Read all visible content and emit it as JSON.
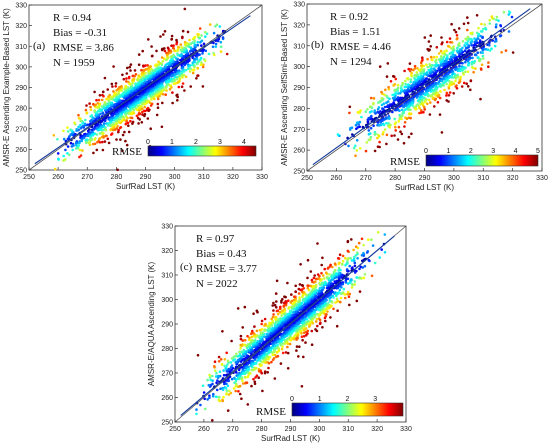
{
  "chart_data": [
    {
      "type": "scatter",
      "panel_label": "(a)",
      "xlabel": "SurfRad LST (K)",
      "ylabel": "AMSR-E Ascending Example-Based LST (K)",
      "xlim": [
        250,
        330
      ],
      "ylim": [
        250,
        330
      ],
      "xticks": [
        250,
        260,
        270,
        280,
        290,
        300,
        310,
        320,
        330
      ],
      "yticks": [
        250,
        260,
        270,
        280,
        290,
        300,
        310,
        320,
        330
      ],
      "stats": [
        "R = 0.94",
        "Bias = -0.31",
        "RMSE = 3.86",
        "N = 1959"
      ],
      "colorbar": {
        "title": "RMSE",
        "min": 0,
        "max": 4.5,
        "ticks": [
          0,
          1,
          2,
          3,
          4
        ]
      },
      "reference_line": "1:1",
      "fit_line": {
        "slope": 0.97,
        "intercept": 8.6
      },
      "grid": false,
      "density": {
        "x_range": [
          255,
          322
        ],
        "spread": 4.8,
        "bias": -0.31,
        "n": 1959
      }
    },
    {
      "type": "scatter",
      "panel_label": "(b)",
      "xlabel": "SurfRad LST (K)",
      "ylabel": "AMSR-E Ascending SelfSimi-Based LST (K)",
      "xlim": [
        250,
        330
      ],
      "ylim": [
        250,
        330
      ],
      "xticks": [
        250,
        260,
        270,
        280,
        290,
        300,
        310,
        320,
        330
      ],
      "yticks": [
        250,
        260,
        270,
        280,
        290,
        300,
        310,
        320,
        330
      ],
      "stats": [
        "R = 0.92",
        "Bias = 1.51",
        "RMSE = 4.46",
        "N = 1294"
      ],
      "colorbar": {
        "title": "RMSE",
        "min": 0,
        "max": 5,
        "ticks": [
          0,
          1,
          2,
          3,
          4,
          5
        ]
      },
      "reference_line": "1:1",
      "fit_line": {
        "slope": 1.01,
        "intercept": -1.5
      },
      "grid": false,
      "density": {
        "x_range": [
          258,
          324
        ],
        "spread": 5.6,
        "bias": 1.51,
        "n": 1294
      }
    },
    {
      "type": "scatter",
      "panel_label": "(c)",
      "xlabel": "SurfRad LST (K)",
      "ylabel": "AMSR-E/AQUA Ascending LST (K)",
      "xlim": [
        250,
        330
      ],
      "ylim": [
        250,
        330
      ],
      "xticks": [
        250,
        260,
        270,
        280,
        290,
        300,
        310,
        320,
        330
      ],
      "yticks": [
        250,
        260,
        270,
        280,
        290,
        300,
        310,
        320,
        330
      ],
      "stats": [
        "R = 0.97",
        "Bias = 0.43",
        "RMSE = 3.77",
        "N = 2022"
      ],
      "colorbar": {
        "title": "RMSE",
        "min": 0,
        "max": 4,
        "ticks": [
          0,
          1,
          2,
          3
        ]
      },
      "reference_line": "1:1",
      "fit_line": {
        "slope": 0.99,
        "intercept": 3.2
      },
      "grid": false,
      "density": {
        "x_range": [
          253,
          326
        ],
        "spread": 4.4,
        "bias": 0.43,
        "n": 2022
      }
    }
  ]
}
